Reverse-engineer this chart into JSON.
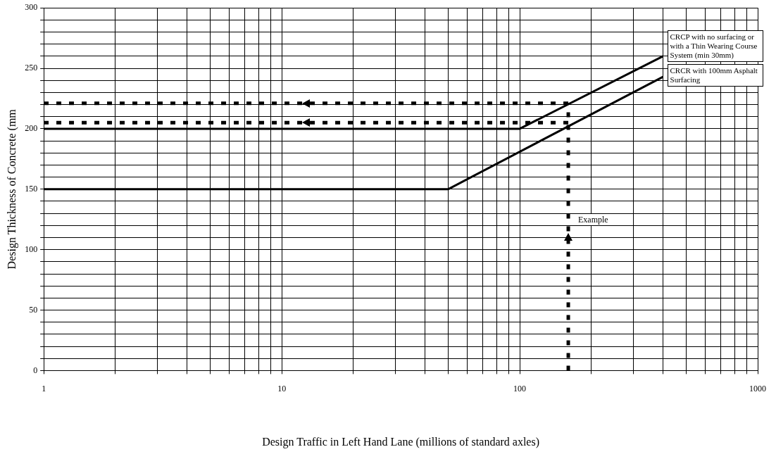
{
  "chart_data": {
    "type": "line",
    "xlabel": "Design Traffic in Left Hand Lane (millions of standard axles)",
    "ylabel": "Design Thickness of Concrete (mm",
    "log": "x",
    "grid": true,
    "legend": false,
    "marker": "none",
    "xlim": [
      1,
      1000
    ],
    "ylim": [
      0,
      300
    ],
    "xticks": [
      1,
      {
        "value": 2,
        "label": null
      },
      {
        "value": 3,
        "label": null
      },
      {
        "value": 4,
        "label": null
      },
      {
        "value": 5,
        "label": null
      },
      {
        "value": 6,
        "label": null
      },
      {
        "value": 7,
        "label": null
      },
      {
        "value": 8,
        "label": null
      },
      {
        "value": 9,
        "label": null
      },
      10,
      {
        "value": 20,
        "label": null
      },
      {
        "value": 30,
        "label": null
      },
      {
        "value": 40,
        "label": null
      },
      {
        "value": 50,
        "label": null
      },
      {
        "value": 60,
        "label": null
      },
      {
        "value": 70,
        "label": null
      },
      {
        "value": 80,
        "label": null
      },
      {
        "value": 90,
        "label": null
      },
      100,
      {
        "value": 200,
        "label": null
      },
      {
        "value": 300,
        "label": null
      },
      {
        "value": 400,
        "label": null
      },
      {
        "value": 500,
        "label": null
      },
      {
        "value": 600,
        "label": null
      },
      {
        "value": 700,
        "label": null
      },
      {
        "value": 800,
        "label": null
      },
      {
        "value": 900,
        "label": null
      },
      1000
    ],
    "yticks": [
      0,
      {
        "value": 10,
        "label": null
      },
      {
        "value": 20,
        "label": null
      },
      {
        "value": 30,
        "label": null
      },
      {
        "value": 40,
        "label": null
      },
      50,
      {
        "value": 60,
        "label": null
      },
      {
        "value": 70,
        "label": null
      },
      {
        "value": 80,
        "label": null
      },
      {
        "value": 90,
        "label": null
      },
      100,
      {
        "value": 110,
        "label": null
      },
      {
        "value": 120,
        "label": null
      },
      {
        "value": 130,
        "label": null
      },
      {
        "value": 140,
        "label": null
      },
      150,
      {
        "value": 160,
        "label": null
      },
      {
        "value": 170,
        "label": null
      },
      {
        "value": 180,
        "label": null
      },
      {
        "value": 190,
        "label": null
      },
      200,
      {
        "value": 210,
        "label": null
      },
      {
        "value": 220,
        "label": null
      },
      {
        "value": 230,
        "label": null
      },
      {
        "value": 240,
        "label": null
      },
      250,
      {
        "value": 260,
        "label": null
      },
      {
        "value": 270,
        "label": null
      },
      {
        "value": 280,
        "label": null
      },
      {
        "value": 290,
        "label": null
      },
      300
    ],
    "series": [
      {
        "name": "CRCP with no surfacing or with a Thin Wearing Course System (min 30mm)",
        "color": "#000000",
        "x": [
          1,
          100,
          400
        ],
        "values": [
          200,
          200,
          260
        ],
        "line_style": "solid"
      },
      {
        "name": "CRCR with 100mm Asphalt Surfacing",
        "color": "#000000",
        "x": [
          1,
          50,
          400
        ],
        "values": [
          150,
          150,
          243
        ],
        "line_style": "solid"
      },
      {
        "color": "#000000",
        "x": [
          160,
          1
        ],
        "values": [
          221,
          221
        ],
        "line_style": "dashed"
      },
      {
        "color": "#000000",
        "x": [
          160,
          1
        ],
        "values": [
          205,
          205
        ],
        "line_style": "dashed"
      },
      {
        "color": "#000000",
        "x": [
          160,
          160
        ],
        "values": [
          0,
          221
        ],
        "line_style": "dashed"
      }
    ],
    "annotations": [
      {
        "text": "Example",
        "x": 160,
        "y": 125
      }
    ]
  }
}
